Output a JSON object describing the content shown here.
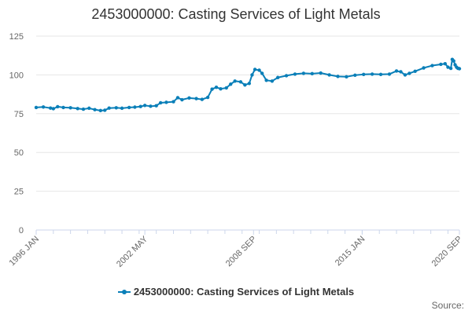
{
  "chart_data": {
    "type": "line",
    "title": "2453000000: Casting Services of Light Metals",
    "xlabel": "",
    "ylabel": "",
    "ylim": [
      0,
      125
    ],
    "yticks": [
      0,
      25,
      50,
      75,
      100,
      125
    ],
    "x_range": [
      "1996-01",
      "2020-09"
    ],
    "xtick_labels": [
      "1996 JAN",
      "2002 MAY",
      "2008 SEP",
      "2015 JAN",
      "2020 SEP"
    ],
    "grid": true,
    "legend_position": "bottom",
    "source_label": "Source:",
    "colors": {
      "series": "#0a7fb8",
      "grid": "#e6e6e6",
      "axis": "#ccd6eb"
    },
    "series": [
      {
        "name": "2453000000: Casting Services of Light Metals",
        "points": [
          [
            "1996-01",
            79.0
          ],
          [
            "1996-06",
            79.3
          ],
          [
            "1996-11",
            78.6
          ],
          [
            "1997-01",
            78.2
          ],
          [
            "1997-04",
            79.5
          ],
          [
            "1997-08",
            79.0
          ],
          [
            "1998-01",
            78.8
          ],
          [
            "1998-06",
            78.3
          ],
          [
            "1998-10",
            77.9
          ],
          [
            "1999-02",
            78.5
          ],
          [
            "1999-06",
            77.6
          ],
          [
            "1999-10",
            77.0
          ],
          [
            "2000-01",
            77.2
          ],
          [
            "2000-04",
            78.6
          ],
          [
            "2000-09",
            78.8
          ],
          [
            "2001-01",
            78.5
          ],
          [
            "2001-06",
            79.0
          ],
          [
            "2001-10",
            79.2
          ],
          [
            "2002-02",
            79.6
          ],
          [
            "2002-05",
            80.3
          ],
          [
            "2002-09",
            79.8
          ],
          [
            "2003-01",
            80.1
          ],
          [
            "2003-04",
            82.0
          ],
          [
            "2003-08",
            82.3
          ],
          [
            "2004-01",
            82.7
          ],
          [
            "2004-04",
            85.3
          ],
          [
            "2004-07",
            84.0
          ],
          [
            "2004-12",
            85.1
          ],
          [
            "2005-05",
            84.7
          ],
          [
            "2005-09",
            84.2
          ],
          [
            "2006-01",
            85.5
          ],
          [
            "2006-04",
            90.8
          ],
          [
            "2006-07",
            92.0
          ],
          [
            "2006-10",
            91.0
          ],
          [
            "2007-02",
            91.6
          ],
          [
            "2007-05",
            94.0
          ],
          [
            "2007-08",
            96.0
          ],
          [
            "2007-12",
            95.5
          ],
          [
            "2008-03",
            93.5
          ],
          [
            "2008-06",
            94.5
          ],
          [
            "2008-08",
            100.0
          ],
          [
            "2008-10",
            103.5
          ],
          [
            "2009-01",
            103.0
          ],
          [
            "2009-03",
            101.0
          ],
          [
            "2009-06",
            96.5
          ],
          [
            "2009-10",
            96.0
          ],
          [
            "2010-02",
            98.3
          ],
          [
            "2010-08",
            99.5
          ],
          [
            "2011-02",
            100.5
          ],
          [
            "2011-08",
            101.0
          ],
          [
            "2012-02",
            100.8
          ],
          [
            "2012-08",
            101.2
          ],
          [
            "2013-02",
            100.0
          ],
          [
            "2013-08",
            99.0
          ],
          [
            "2014-02",
            98.8
          ],
          [
            "2014-08",
            99.8
          ],
          [
            "2015-02",
            100.3
          ],
          [
            "2015-08",
            100.5
          ],
          [
            "2016-02",
            100.3
          ],
          [
            "2016-08",
            100.5
          ],
          [
            "2017-01",
            102.5
          ],
          [
            "2017-04",
            102.0
          ],
          [
            "2017-07",
            100.0
          ],
          [
            "2017-10",
            101.0
          ],
          [
            "2018-02",
            102.3
          ],
          [
            "2018-08",
            104.5
          ],
          [
            "2019-02",
            106.0
          ],
          [
            "2019-08",
            106.8
          ],
          [
            "2019-11",
            107.2
          ],
          [
            "2020-01",
            105.0
          ],
          [
            "2020-03",
            104.2
          ],
          [
            "2020-04",
            110.0
          ],
          [
            "2020-05",
            109.0
          ],
          [
            "2020-06",
            106.5
          ],
          [
            "2020-07",
            105.0
          ],
          [
            "2020-08",
            104.2
          ],
          [
            "2020-09",
            104.0
          ]
        ]
      }
    ]
  }
}
